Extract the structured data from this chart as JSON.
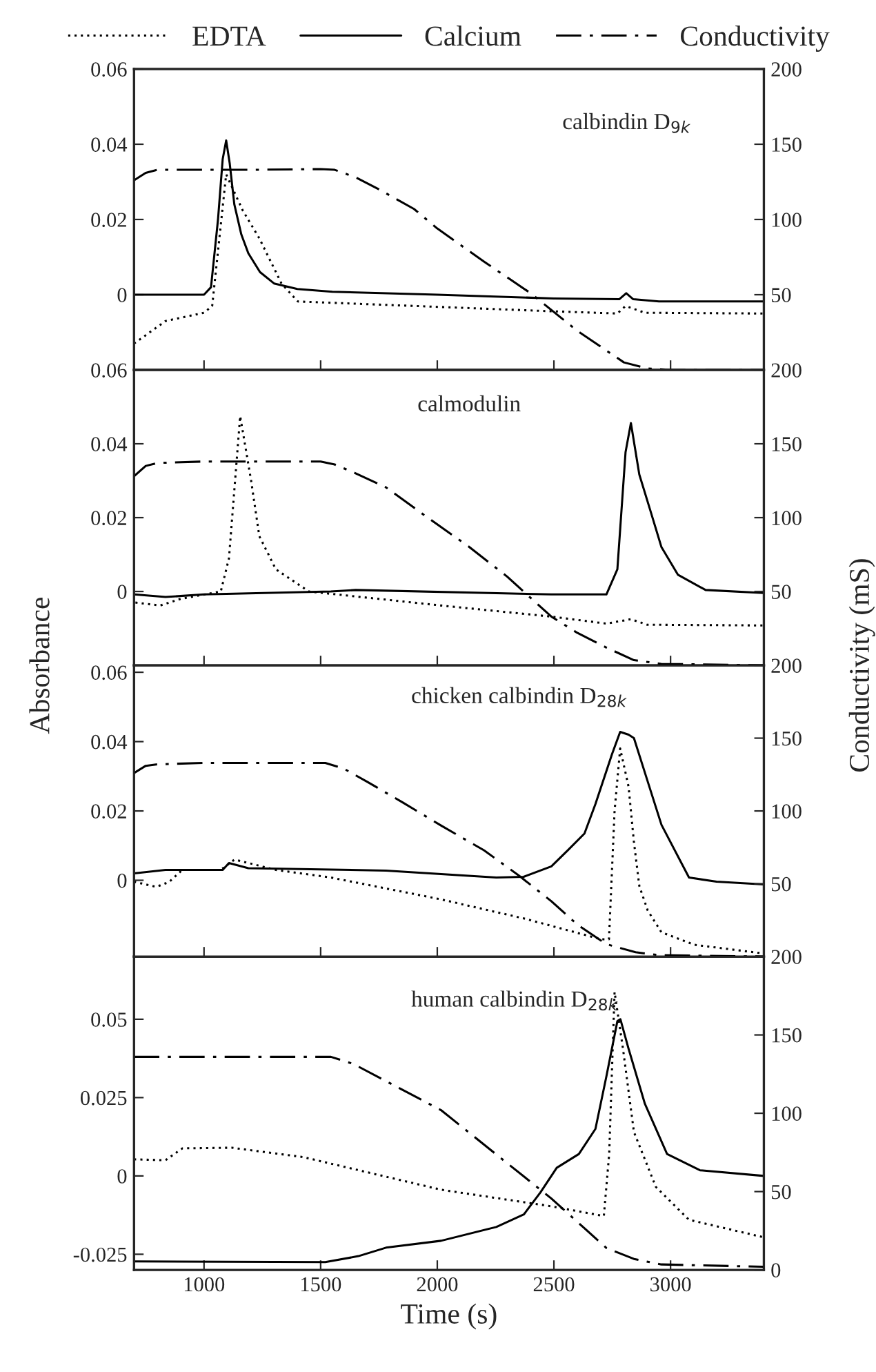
{
  "chart_data": [
    {
      "type": "line",
      "annotations": [
        "calbindin D$_{9k}$"
      ],
      "legend": "top",
      "tick_labels": [
        "y",
        "y2"
      ],
      "xlim": [
        700,
        3400
      ],
      "ylim": [
        -0.02,
        0.06
      ],
      "yticks": [
        0,
        0.02,
        0.04,
        0.06
      ],
      "y2lim": [
        0,
        200
      ],
      "y2ticks": [
        50,
        100,
        150,
        200
      ],
      "series": [
        {
          "name": "EDTA",
          "color": "#000000",
          "line_style": "dotted",
          "x": [
            700,
            835,
            1000,
            1035,
            1095,
            1166,
            1237,
            1332,
            1402,
            2489,
            2772,
            2807,
            2890,
            3400
          ],
          "values": [
            -0.013,
            -0.007,
            -0.0048,
            -0.003,
            0.032,
            0.0224,
            0.015,
            0.003,
            -0.0018,
            -0.0044,
            -0.005,
            -0.003,
            -0.0048,
            -0.005
          ]
        },
        {
          "name": "Calcium",
          "color": "#000000",
          "line_style": "solid",
          "x": [
            700,
            1000,
            1030,
            1060,
            1080,
            1095,
            1110,
            1130,
            1160,
            1190,
            1240,
            1300,
            1400,
            1550,
            2000,
            2500,
            2780,
            2810,
            2840,
            2950,
            3400
          ],
          "values": [
            0,
            0,
            0.002,
            0.02,
            0.036,
            0.041,
            0.035,
            0.024,
            0.016,
            0.011,
            0.006,
            0.003,
            0.0015,
            0.0008,
            0,
            -0.001,
            -0.0012,
            0.0004,
            -0.0012,
            -0.0018,
            -0.0018
          ]
        },
        {
          "name": "Conductivity",
          "color": "#000000",
          "line_style": "dashdot",
          "axis": "y2",
          "x": [
            700,
            750,
            800,
            900,
            1000,
            1200,
            1500,
            1560,
            1650,
            1750,
            1900,
            2000,
            2200,
            2400,
            2600,
            2800,
            2900,
            3000,
            3400
          ],
          "values": [
            126,
            131,
            133,
            133,
            133,
            133,
            133.5,
            133,
            128,
            120,
            107,
            94,
            72,
            51,
            26,
            5,
            1,
            0,
            0
          ]
        }
      ]
    },
    {
      "type": "line",
      "annotations": [
        "calmodulin"
      ],
      "ylabel": "Absorbance",
      "y2label": "Conductivity (mS)",
      "tick_labels": [
        "y",
        "y2"
      ],
      "xlim": [
        700,
        3400
      ],
      "ylim": [
        -0.02,
        0.06
      ],
      "yticks": [
        0,
        0.02,
        0.04,
        0.06
      ],
      "y2lim": [
        0,
        200
      ],
      "y2ticks": [
        50,
        100,
        150,
        200
      ],
      "series": [
        {
          "color": "#000000",
          "line_style": "dotted",
          "x": [
            706,
            812,
            900,
            1072,
            1107,
            1155,
            1202,
            1237,
            1308,
            1450,
            2016,
            2489,
            2725,
            2830,
            2900,
            3400
          ],
          "values": [
            -0.003,
            -0.0038,
            -0.002,
            0,
            0.009,
            0.0475,
            0.03,
            0.015,
            0.006,
            0,
            -0.0038,
            -0.0068,
            -0.0087,
            -0.0075,
            -0.009,
            -0.0092
          ]
        },
        {
          "color": "#000000",
          "line_style": "solid",
          "x": [
            700,
            835,
            1000,
            1544,
            1650,
            2489,
            2725,
            2772,
            2807,
            2830,
            2866,
            2913,
            2961,
            3032,
            3150,
            3400
          ],
          "values": [
            -0.0008,
            -0.0015,
            -0.0008,
            0,
            0.0004,
            -0.0008,
            -0.0008,
            0.006,
            0.0377,
            0.0456,
            0.0317,
            0.022,
            0.012,
            0.0045,
            0.0004,
            -0.0004
          ]
        },
        {
          "color": "#000000",
          "line_style": "dashdot",
          "axis": "y2",
          "x": [
            700,
            750,
            800,
            1000,
            1500,
            1560,
            1650,
            1780,
            1950,
            2134,
            2300,
            2489,
            2600,
            2725,
            2843,
            2960,
            3400
          ],
          "values": [
            128,
            135,
            137,
            138,
            138,
            136,
            130,
            120.5,
            101,
            80.5,
            60,
            33,
            22,
            12,
            3.5,
            1,
            0
          ]
        }
      ]
    },
    {
      "type": "line",
      "annotations": [
        "chicken calbindin D$_{28k}$"
      ],
      "tick_labels": [
        "y",
        "y2"
      ],
      "xlim": [
        700,
        3400
      ],
      "ylim": [
        -0.022,
        0.062
      ],
      "yticks": [
        0,
        0.02,
        0.04,
        0.06
      ],
      "y2lim": [
        0,
        200
      ],
      "y2ticks": [
        50,
        100,
        150,
        200
      ],
      "series": [
        {
          "color": "#000000",
          "line_style": "dotted",
          "x": [
            700,
            795,
            850,
            907,
            1072,
            1131,
            1308,
            1544,
            2016,
            2371,
            2702,
            2736,
            2760,
            2784,
            2820,
            2843,
            2866,
            2902,
            2961,
            3102,
            3387,
            3400
          ],
          "values": [
            -0.0004,
            -0.0019,
            -0.0005,
            0.003,
            0.003,
            0.006,
            0.003,
            0.0008,
            -0.0055,
            -0.011,
            -0.017,
            -0.017,
            0.02,
            0.038,
            0.027,
            0.011,
            -0.0016,
            -0.0087,
            -0.015,
            -0.0186,
            -0.021,
            -0.021
          ]
        },
        {
          "color": "#000000",
          "line_style": "solid",
          "x": [
            700,
            835,
            1080,
            1107,
            1190,
            1780,
            2253,
            2370,
            2489,
            2560,
            2631,
            2678,
            2749,
            2784,
            2820,
            2843,
            2902,
            2961,
            3079,
            3197,
            3400
          ],
          "values": [
            0.002,
            0.003,
            0.003,
            0.005,
            0.0035,
            0.0028,
            0.0008,
            0.001,
            0.004,
            0.0087,
            0.0135,
            0.022,
            0.0364,
            0.0428,
            0.042,
            0.041,
            0.0285,
            0.016,
            0.0008,
            -0.0004,
            -0.0012
          ]
        },
        {
          "color": "#000000",
          "line_style": "dashdot",
          "axis": "y2",
          "x": [
            700,
            750,
            800,
            1000,
            1520,
            1600,
            1700,
            1850,
            2016,
            2200,
            2347,
            2489,
            2600,
            2725,
            2850,
            2950,
            3400
          ],
          "values": [
            126,
            131,
            132,
            133,
            133,
            129,
            120,
            106,
            90,
            73,
            56,
            38,
            22,
            8.5,
            3,
            1,
            0
          ]
        }
      ]
    },
    {
      "type": "line",
      "annotations": [
        "human calbindin D$_{28k}$"
      ],
      "xlabel": "Time (s)",
      "xlim": [
        700,
        3400
      ],
      "xticks": [
        1000,
        1500,
        2000,
        2500,
        3000
      ],
      "ylim": [
        -0.03,
        0.07
      ],
      "yticks": [
        -0.025,
        0,
        0.025,
        0.05
      ],
      "y2lim": [
        0,
        200
      ],
      "y2ticks": [
        0,
        50,
        100,
        150,
        200
      ],
      "series": [
        {
          "color": "#000000",
          "line_style": "dotted",
          "x": [
            700,
            835,
            907,
            1119,
            1426,
            2016,
            2489,
            2714,
            2737,
            2760,
            2796,
            2843,
            2937,
            3079,
            3400
          ],
          "values": [
            0.0053,
            0.005,
            0.0088,
            0.009,
            0.006,
            -0.0044,
            -0.0097,
            -0.0128,
            0.0071,
            0.0587,
            0.0406,
            0.014,
            -0.0035,
            -0.014,
            -0.0196
          ]
        },
        {
          "color": "#000000",
          "line_style": "solid",
          "x": [
            700,
            1520,
            1662,
            1780,
            2016,
            2253,
            2371,
            2442,
            2512,
            2607,
            2678,
            2725,
            2772,
            2785,
            2820,
            2890,
            2985,
            3126,
            3400
          ],
          "values": [
            -0.0273,
            -0.0275,
            -0.0256,
            -0.0229,
            -0.0207,
            -0.0163,
            -0.0123,
            -0.0053,
            0.0026,
            0.007,
            0.015,
            0.0318,
            0.0494,
            0.05,
            0.0406,
            0.023,
            0.007,
            0.0018,
            0
          ]
        },
        {
          "color": "#000000",
          "line_style": "dashdot",
          "axis": "y2",
          "x": [
            700,
            1544,
            1640,
            2016,
            2253,
            2489,
            2725,
            2843,
            2961,
            3400
          ],
          "values": [
            136,
            136,
            131.5,
            102,
            73.7,
            45.6,
            14,
            7,
            3.5,
            2
          ]
        }
      ]
    }
  ]
}
